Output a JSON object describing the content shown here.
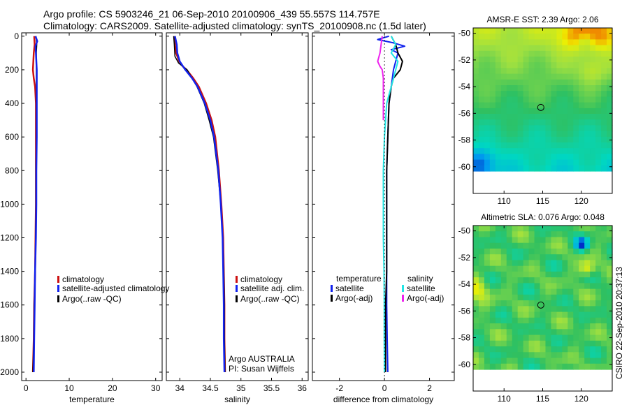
{
  "header": {
    "line1": "Argo profile: CS 5903246_21 06-Sep-2010 20100906_439 55.557S 114.757E",
    "line2": "Climatology: CARS2009. Satellite-adjusted climatology: synTS_20100908.nc (1.5d later)"
  },
  "credit": "CSIRO 22-Sep-2010 20:37:13",
  "colors": {
    "climatology": "#cc1111",
    "satellite": "#1122ee",
    "argo": "#000000",
    "salinity_satellite": "#22e6e6",
    "salinity_argo": "#ee22ee"
  },
  "chart_data": [
    {
      "type": "line",
      "title": "",
      "xlabel": "temperature",
      "ylabel": "",
      "xlim": [
        -1,
        31.5
      ],
      "ylim": [
        2050,
        -20
      ],
      "xticks": [
        0,
        10,
        20,
        30
      ],
      "yticks": [
        0,
        200,
        400,
        600,
        800,
        1000,
        1200,
        1400,
        1600,
        1800,
        2000
      ],
      "legend": {
        "placement": "center",
        "entries": [
          "climatology",
          "satellite-adjusted climatology",
          "Argo(..raw -QC)"
        ]
      },
      "series": [
        {
          "name": "climatology",
          "color": "#cc1111",
          "width": 2.5,
          "y": [
            0,
            50,
            100,
            150,
            200,
            250,
            300,
            400,
            600,
            800,
            1000,
            1200,
            1400,
            1600,
            1800,
            2000
          ],
          "x": [
            1.9,
            2.0,
            1.8,
            1.7,
            1.6,
            1.8,
            2.1,
            2.3,
            2.3,
            2.3,
            2.3,
            2.2,
            2.1,
            1.9,
            1.8,
            1.6
          ]
        },
        {
          "name": "Argo(..raw -QC)",
          "color": "#000000",
          "width": 1.5,
          "y": [
            0,
            50,
            100,
            150,
            200,
            250,
            300,
            400,
            600,
            800,
            1000,
            1200,
            1400,
            1600,
            1800,
            2000
          ],
          "x": [
            2.3,
            2.5,
            2.4,
            2.4,
            2.4,
            2.4,
            2.4,
            2.4,
            2.4,
            2.3,
            2.3,
            2.2,
            2.1,
            1.9,
            1.8,
            1.6
          ]
        },
        {
          "name": "satellite-adjusted climatology",
          "color": "#1122ee",
          "width": 2.5,
          "y": [
            0,
            30,
            60,
            100,
            150,
            200,
            250,
            300,
            400,
            600,
            800,
            1000,
            1200,
            1400,
            1600,
            1800,
            2000
          ],
          "x": [
            2.2,
            2.6,
            2.2,
            2.3,
            2.4,
            2.5,
            2.5,
            2.5,
            2.5,
            2.5,
            2.4,
            2.4,
            2.3,
            2.1,
            2.0,
            1.9,
            1.8
          ]
        }
      ]
    },
    {
      "type": "line",
      "title": "",
      "xlabel": "salinity",
      "ylabel": "",
      "xlim": [
        33.78,
        36.1
      ],
      "ylim": [
        2050,
        -20
      ],
      "xticks": [
        34,
        34.5,
        35,
        35.5,
        36
      ],
      "yticks": [
        0,
        200,
        400,
        600,
        800,
        1000,
        1200,
        1400,
        1600,
        1800,
        2000
      ],
      "legend": {
        "placement": "center",
        "entries": [
          "climatology",
          "satellite adj. clim.",
          "Argo(..raw -QC)"
        ]
      },
      "annotation": [
        "Argo AUSTRALIA",
        "PI: Susan Wijffels"
      ],
      "series": [
        {
          "name": "climatology",
          "color": "#cc1111",
          "width": 2.5,
          "y": [
            0,
            50,
            100,
            150,
            180,
            200,
            250,
            300,
            400,
            500,
            600,
            800,
            1000,
            1200,
            1400,
            1600,
            1800,
            2000
          ],
          "x": [
            33.91,
            33.92,
            33.94,
            33.99,
            34.05,
            34.11,
            34.22,
            34.31,
            34.43,
            34.52,
            34.58,
            34.64,
            34.68,
            34.71,
            34.72,
            34.73,
            34.73,
            34.74
          ]
        },
        {
          "name": "Argo(..raw -QC)",
          "color": "#000000",
          "width": 1.5,
          "y": [
            0,
            50,
            120,
            160,
            180,
            200,
            250,
            300,
            400,
            500,
            600,
            800,
            1000,
            1200,
            1400,
            1600,
            1800,
            2000
          ],
          "x": [
            33.9,
            33.91,
            33.92,
            33.98,
            34.05,
            34.12,
            34.2,
            34.28,
            34.4,
            34.48,
            34.55,
            34.62,
            34.67,
            34.7,
            34.72,
            34.73,
            34.73,
            34.74
          ]
        },
        {
          "name": "satellite adj. clim.",
          "color": "#1122ee",
          "width": 2.5,
          "y": [
            0,
            50,
            100,
            150,
            200,
            250,
            300,
            400,
            500,
            600,
            800,
            1000,
            1200,
            1400,
            1600,
            1800,
            2000
          ],
          "x": [
            33.92,
            33.95,
            33.96,
            34.0,
            34.09,
            34.2,
            34.29,
            34.41,
            34.5,
            34.56,
            34.63,
            34.67,
            34.7,
            34.71,
            34.72,
            34.72,
            34.73
          ]
        }
      ]
    },
    {
      "type": "line",
      "title": "",
      "xlabel": "difference from climatology",
      "ylabel": "",
      "xlim": [
        -3.2,
        3.1
      ],
      "ylim": [
        2050,
        -20
      ],
      "xticks": [
        -2,
        0,
        2
      ],
      "yticks": [
        0,
        200,
        400,
        600,
        800,
        1000,
        1200,
        1400,
        1600,
        1800,
        2000
      ],
      "legend": {
        "placement": "center",
        "headers": [
          "temperature",
          "salinity"
        ],
        "entries": [
          "satellite",
          "Argo(-adj)",
          "satellite",
          "Argo(-adj)"
        ]
      },
      "series": [
        {
          "name": "temperature satellite",
          "color": "#1122ee",
          "width": 2,
          "y": [
            0,
            20,
            40,
            60,
            80,
            100,
            150,
            200,
            300,
            400,
            600,
            800,
            1000,
            1200,
            1400,
            1600,
            1800,
            2000
          ],
          "x": [
            0.2,
            -0.3,
            0.4,
            0.9,
            0.3,
            0.6,
            0.5,
            0.4,
            0.3,
            0.2,
            0.15,
            0.1,
            0.1,
            0.1,
            0.1,
            0.1,
            0.12,
            0.15
          ]
        },
        {
          "name": "temperature Argo(-adj)",
          "color": "#000000",
          "width": 2,
          "y": [
            0,
            50,
            100,
            150,
            200,
            250,
            300,
            400,
            600,
            800,
            1000,
            1200,
            1400,
            1600,
            1800,
            2000
          ],
          "x": [
            0.3,
            0.5,
            0.6,
            0.8,
            0.7,
            0.4,
            0.3,
            0.2,
            0.15,
            0.1,
            0.1,
            0.1,
            0.1,
            0.05,
            0.05,
            0.05
          ]
        },
        {
          "name": "salinity satellite",
          "color": "#22e6e6",
          "width": 2,
          "y": [
            0,
            50,
            100,
            150,
            200,
            300,
            400,
            600,
            800,
            1000,
            1200,
            1400,
            1600,
            1800,
            2000
          ],
          "x": [
            0.3,
            0.5,
            0.3,
            0.6,
            0.5,
            0.3,
            0.1,
            0.0,
            -0.05,
            -0.05,
            -0.05,
            -0.02,
            -0.01,
            -0.01,
            0.0
          ]
        },
        {
          "name": "salinity Argo(-adj)",
          "color": "#ee22ee",
          "width": 2,
          "y": [
            0,
            100,
            150,
            180,
            200,
            250,
            300,
            400,
            500
          ],
          "x": [
            -0.1,
            -0.2,
            -0.3,
            -0.2,
            -0.1,
            -0.05,
            -0.05,
            -0.05,
            -0.05
          ]
        }
      ]
    },
    {
      "type": "heatmap",
      "title": "AMSR-E SST: 2.39 Argo: 2.06",
      "xlabel": "",
      "ylabel": "",
      "xlim": [
        106,
        124
      ],
      "ylim": [
        -62,
        -49.6
      ],
      "xticks": [
        110,
        115,
        120
      ],
      "yticks": [
        -50,
        -52,
        -54,
        -56,
        -58,
        -60
      ],
      "marker": {
        "lon": 114.757,
        "lat": -55.557
      },
      "colorscale": [
        "#0030c8",
        "#00a0f0",
        "#00d8c0",
        "#30c060",
        "#a0e040",
        "#f0f000",
        "#f08000",
        "#a00000"
      ]
    },
    {
      "type": "heatmap",
      "title": "Altimetric SLA: 0.076 Argo: 0.048",
      "xlabel": "",
      "ylabel": "",
      "xlim": [
        106,
        124
      ],
      "ylim": [
        -62,
        -49.6
      ],
      "xticks": [
        110,
        115,
        120
      ],
      "yticks": [
        -50,
        -52,
        -54,
        -56,
        -58,
        -60
      ],
      "marker": {
        "lon": 114.757,
        "lat": -55.557
      },
      "colorscale": [
        "#0030c8",
        "#00a0f0",
        "#00d8c0",
        "#30c060",
        "#a0e040",
        "#f0f000",
        "#f08000",
        "#a00000"
      ]
    }
  ]
}
